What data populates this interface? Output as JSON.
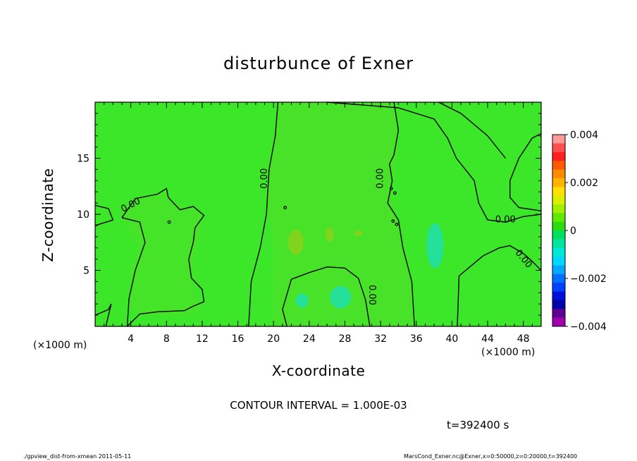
{
  "chart_data": {
    "type": "contour",
    "title": "disturbunce of Exner",
    "xlabel": "X-coordinate",
    "ylabel": "Z-coordinate",
    "x_unit": "(×1000 m)",
    "xlim": [
      0,
      50
    ],
    "ylim": [
      0,
      20
    ],
    "xticks": [
      4,
      8,
      12,
      16,
      20,
      24,
      28,
      32,
      36,
      40,
      44,
      48
    ],
    "yticks": [
      5,
      10,
      15
    ],
    "contour_labels": [
      {
        "text": "0.00",
        "x": 4.0,
        "z": 10.8
      },
      {
        "text": "0.00",
        "x": 19.0,
        "z": 13.2
      },
      {
        "text": "0.00",
        "x": 32.0,
        "z": 13.2
      },
      {
        "text": "0.00",
        "x": 31.0,
        "z": 2.8
      },
      {
        "text": "0.00",
        "x": 46.0,
        "z": 9.5
      },
      {
        "text": "0.00",
        "x": 48.0,
        "z": 6.0
      }
    ],
    "colorbar": {
      "ticks": [
        "0.004",
        "0.002",
        "0",
        "−0.002",
        "−0.004"
      ],
      "range": [
        -0.004,
        0.004
      ],
      "colors": [
        "#ff9a9a",
        "#ff5050",
        "#ff2020",
        "#ff5a00",
        "#ff8c00",
        "#ffb400",
        "#ffe000",
        "#d8f000",
        "#a0f000",
        "#60ea00",
        "#2cdc10",
        "#00e060",
        "#00e6a0",
        "#00e8d8",
        "#00d8ff",
        "#00a8ff",
        "#0070ff",
        "#0040ff",
        "#0010d8",
        "#0000a8",
        "#600090",
        "#a000b0"
      ]
    },
    "contour_interval": "CONTOUR INTERVAL = 1.000E-03",
    "background_value": 0
  },
  "time_label": "t=392400 s",
  "footer_left": "./gpview_dist-from-xmean   2011-05-11",
  "footer_right": "MarsCond_Exner.nc@Exner,x=0:50000,z=0:20000,t=392400",
  "colors": {
    "field": "#3ce628",
    "field_light": "#56e028",
    "positive_blob": "#80d41c",
    "negative_blob": "#24e098",
    "negative_blob_light": "#30e070"
  }
}
